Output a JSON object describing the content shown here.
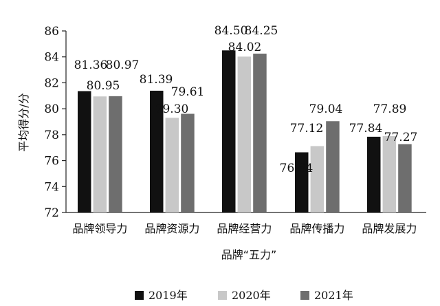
{
  "chart_data": {
    "type": "bar",
    "ylabel": "平均得分/分",
    "xlabel": "品牌“五力”",
    "ylim": [
      72,
      86
    ],
    "yticks": [
      72,
      74,
      76,
      78,
      80,
      82,
      84,
      86
    ],
    "categories": [
      "品牌领导力",
      "品牌资源力",
      "品牌经营力",
      "品牌传播力",
      "品牌发展力"
    ],
    "series": [
      {
        "name": "2019年",
        "color": "#111111",
        "values": [
          81.36,
          81.39,
          84.5,
          76.64,
          77.84
        ],
        "labels": [
          "81.36",
          "81.39",
          "84.50",
          "76.64",
          "77.84"
        ]
      },
      {
        "name": "2020年",
        "color": "#c8c8c8",
        "values": [
          80.95,
          79.3,
          84.02,
          77.12,
          77.89
        ],
        "labels": [
          "80.95",
          "79.30",
          "84.02",
          "77.12",
          "77.89"
        ]
      },
      {
        "name": "2021年",
        "color": "#6e6e6e",
        "values": [
          80.97,
          79.61,
          84.25,
          79.04,
          77.27
        ],
        "labels": [
          "80.97",
          "79.61",
          "84.25",
          "79.04",
          "77.27"
        ]
      }
    ],
    "legend_position": "bottom",
    "grid": false
  }
}
